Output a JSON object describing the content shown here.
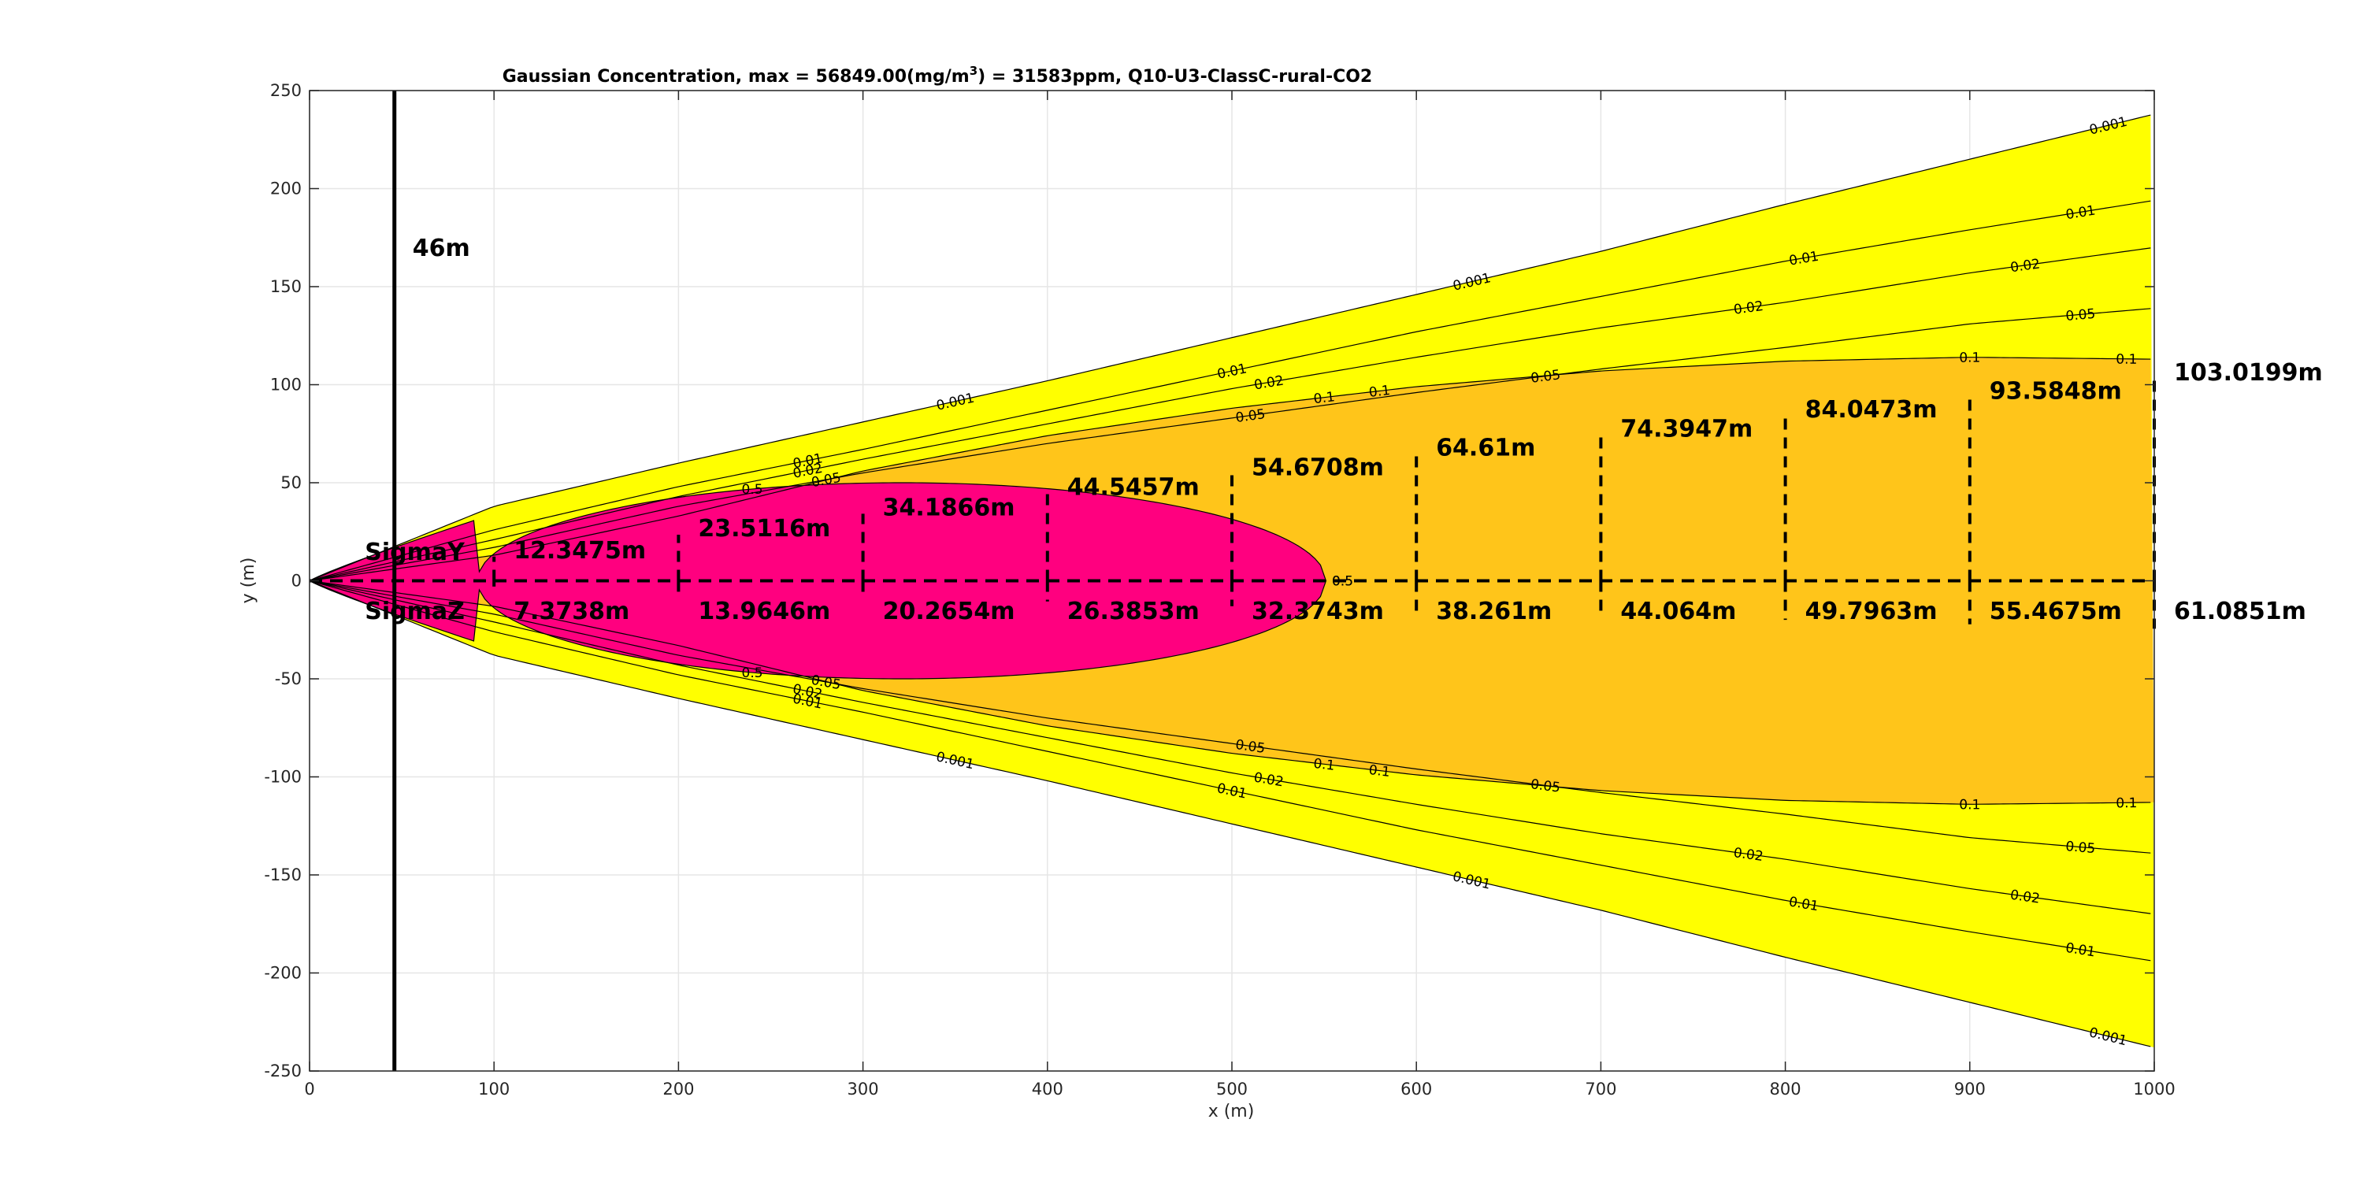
{
  "chart_data": {
    "type": "contour",
    "title_parts": {
      "before": "Gaussian Concentration, max = 56849.00(mg/m",
      "sup": "3",
      "after": ") = 31583ppm, Q10-U3-ClassC-rural-CO2"
    },
    "xlabel": "x (m)",
    "ylabel": "y (m)",
    "xlim": [
      0,
      1000
    ],
    "ylim": [
      -250,
      250
    ],
    "xticks": [
      0,
      100,
      200,
      300,
      400,
      500,
      600,
      700,
      800,
      900,
      1000
    ],
    "yticks": [
      -250,
      -200,
      -150,
      -100,
      -50,
      0,
      50,
      100,
      150,
      200,
      250
    ],
    "grid": true,
    "colors": {
      "outer_fill": "#ffff00",
      "mid_fill": "#ffc51a",
      "core_fill": "#ff007f",
      "contour_line": "#000000"
    },
    "contour_levels": [
      "0.001",
      "0.01",
      "0.02",
      "0.05",
      "0.1",
      "0.5"
    ],
    "contours": [
      {
        "level": "0.001",
        "y_edge": [
          0,
          38,
          60,
          81,
          102,
          124,
          146,
          168,
          192,
          215,
          238
        ],
        "label_x": [
          350,
          630,
          975
        ]
      },
      {
        "level": "0.01",
        "y_edge": [
          0,
          26,
          48,
          67,
          87,
          107,
          127,
          145,
          163,
          179,
          194
        ],
        "label_x": [
          270,
          500,
          810,
          960
        ]
      },
      {
        "level": "0.02",
        "y_edge": [
          0,
          21,
          43,
          62,
          80,
          98,
          114,
          129,
          142,
          157,
          170
        ],
        "label_x": [
          270,
          520,
          780,
          930
        ]
      },
      {
        "level": "0.05",
        "y_edge": [
          0,
          17,
          38,
          55,
          70,
          83,
          96,
          108,
          119,
          131,
          139
        ],
        "label_x": [
          280,
          510,
          670,
          960
        ]
      },
      {
        "level": "0.1",
        "y_edge": [
          0,
          13,
          33,
          56,
          74,
          88,
          99,
          107,
          112,
          114,
          113
        ],
        "label_x": [
          550,
          580,
          900,
          1000
        ]
      },
      {
        "level": "0.5",
        "center_x": 321,
        "half_length": 230,
        "half_width": 50,
        "label_x": [
          240,
          560
        ]
      }
    ],
    "source_line": {
      "x": 46,
      "label": "46m"
    },
    "centerline_y": 0,
    "sigma_row_labels": {
      "sigma_y": "SigmaY",
      "sigma_z": "SigmaZ"
    },
    "sigma_x": [
      100,
      200,
      300,
      400,
      500,
      600,
      700,
      800,
      900,
      1000
    ],
    "sigma_y": [
      12.3475,
      23.5116,
      34.1866,
      44.5457,
      54.6708,
      64.61,
      74.3947,
      84.0473,
      93.5848,
      103.0199
    ],
    "sigma_y_labels": [
      "12.3475m",
      "23.5116m",
      "34.1866m",
      "44.5457m",
      "54.6708m",
      "64.61m",
      "74.3947m",
      "84.0473m",
      "93.5848m",
      "103.0199m"
    ],
    "sigma_z": [
      7.3738,
      13.9646,
      20.2654,
      26.3853,
      32.3743,
      38.261,
      44.064,
      49.7963,
      55.4675,
      61.0851
    ],
    "sigma_z_labels": [
      "7.3738m",
      "13.9646m",
      "20.2654m",
      "26.3853m",
      "32.3743m",
      "38.261m",
      "44.064m",
      "49.7963m",
      "55.4675m",
      "61.0851m"
    ]
  }
}
